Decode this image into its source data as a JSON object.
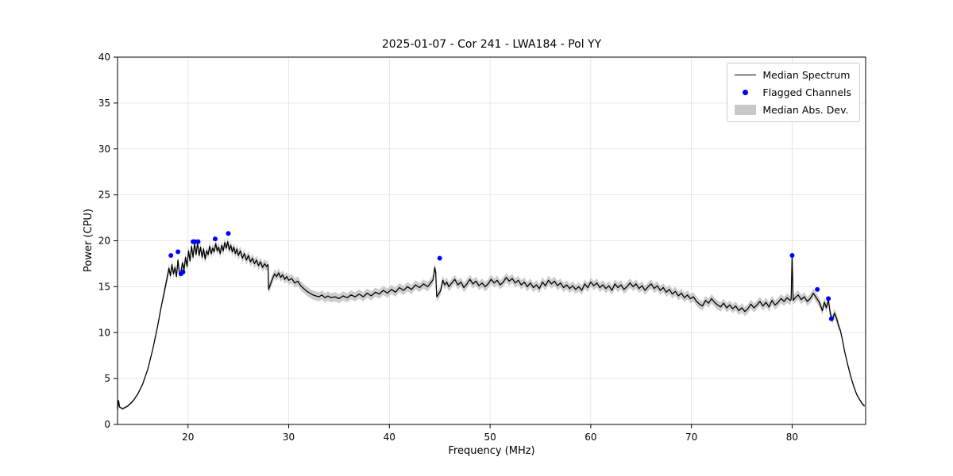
{
  "title": "2025-01-07 - Cor 241 - LWA184 - Pol YY",
  "legend": {
    "items": [
      {
        "label": "Median Spectrum"
      },
      {
        "label": "Flagged Channels"
      },
      {
        "label": "Median Abs. Dev."
      }
    ]
  },
  "chart_data": {
    "type": "line",
    "title": "2025-01-07 - Cor 241 - LWA184 - Pol YY",
    "xlabel": "Frequency (MHz)",
    "ylabel": "Power (CPU)",
    "axes": {
      "x_min": 13.0,
      "x_max": 87.3,
      "y_min": 0,
      "y_max": 40
    },
    "x_ticks": [
      20,
      30,
      40,
      50,
      60,
      70,
      80
    ],
    "y_ticks": [
      0,
      5,
      10,
      15,
      20,
      25,
      30,
      35,
      40
    ],
    "legend_position": "upper right",
    "grid": true,
    "colors": {
      "line": "#000000",
      "flagged": "#0000ff",
      "band": "#c8c8c8",
      "grid": "#e0e0e0"
    },
    "mad_band": {
      "regions": [
        {
          "x0": 13.0,
          "x1": 17.5,
          "hw": 0.12
        },
        {
          "x0": 17.5,
          "x1": 84.6,
          "hw": 0.5
        },
        {
          "x0": 84.6,
          "x1": 87.3,
          "hw": 0.15
        }
      ]
    },
    "spectrum": [
      [
        13.0,
        1.6
      ],
      [
        13.1,
        2.6
      ],
      [
        13.2,
        1.9
      ],
      [
        13.5,
        1.7
      ],
      [
        14.0,
        2.0
      ],
      [
        14.5,
        2.5
      ],
      [
        15.0,
        3.3
      ],
      [
        15.5,
        4.4
      ],
      [
        16.0,
        6.0
      ],
      [
        16.5,
        8.2
      ],
      [
        17.0,
        10.8
      ],
      [
        17.3,
        12.6
      ],
      [
        17.6,
        14.2
      ],
      [
        17.8,
        15.3
      ],
      [
        18.0,
        16.4
      ],
      [
        18.1,
        17.0
      ],
      [
        18.25,
        16.2
      ],
      [
        18.4,
        17.4
      ],
      [
        18.55,
        16.4
      ],
      [
        18.7,
        17.1
      ],
      [
        18.85,
        16.1
      ],
      [
        19.0,
        17.9
      ],
      [
        19.15,
        16.3
      ],
      [
        19.3,
        16.6
      ],
      [
        19.45,
        17.6
      ],
      [
        19.6,
        16.8
      ],
      [
        19.75,
        18.2
      ],
      [
        19.9,
        17.2
      ],
      [
        20.05,
        18.9
      ],
      [
        20.2,
        17.8
      ],
      [
        20.35,
        19.4
      ],
      [
        20.5,
        18.2
      ],
      [
        20.65,
        19.7
      ],
      [
        20.8,
        18.5
      ],
      [
        20.95,
        19.8
      ],
      [
        21.1,
        18.4
      ],
      [
        21.25,
        19.3
      ],
      [
        21.4,
        18.2
      ],
      [
        21.55,
        19.1
      ],
      [
        21.7,
        18.0
      ],
      [
        21.85,
        18.9
      ],
      [
        22.0,
        18.5
      ],
      [
        22.15,
        19.4
      ],
      [
        22.3,
        18.6
      ],
      [
        22.45,
        19.2
      ],
      [
        22.6,
        18.8
      ],
      [
        22.75,
        19.7
      ],
      [
        22.9,
        18.9
      ],
      [
        23.05,
        19.3
      ],
      [
        23.2,
        18.6
      ],
      [
        23.35,
        19.5
      ],
      [
        23.5,
        18.9
      ],
      [
        23.65,
        19.8
      ],
      [
        23.8,
        19.2
      ],
      [
        23.95,
        19.9
      ],
      [
        24.1,
        19.0
      ],
      [
        24.25,
        19.5
      ],
      [
        24.4,
        18.8
      ],
      [
        24.55,
        19.3
      ],
      [
        24.7,
        18.6
      ],
      [
        24.85,
        19.1
      ],
      [
        25.0,
        18.4
      ],
      [
        25.2,
        18.9
      ],
      [
        25.4,
        18.1
      ],
      [
        25.6,
        18.6
      ],
      [
        25.8,
        17.9
      ],
      [
        26.0,
        18.4
      ],
      [
        26.2,
        17.7
      ],
      [
        26.4,
        18.1
      ],
      [
        26.6,
        17.5
      ],
      [
        26.8,
        17.9
      ],
      [
        27.0,
        17.3
      ],
      [
        27.2,
        17.7
      ],
      [
        27.4,
        17.1
      ],
      [
        27.6,
        17.5
      ],
      [
        27.8,
        17.2
      ],
      [
        27.95,
        17.4
      ],
      [
        28.0,
        14.7
      ],
      [
        28.2,
        15.3
      ],
      [
        28.4,
        15.9
      ],
      [
        28.6,
        16.4
      ],
      [
        28.8,
        16.1
      ],
      [
        29.0,
        16.5
      ],
      [
        29.2,
        16.0
      ],
      [
        29.4,
        16.3
      ],
      [
        29.6,
        15.8
      ],
      [
        29.8,
        16.1
      ],
      [
        30.0,
        15.7
      ],
      [
        30.3,
        15.9
      ],
      [
        30.6,
        15.4
      ],
      [
        30.9,
        15.6
      ],
      [
        31.2,
        15.1
      ],
      [
        31.5,
        14.8
      ],
      [
        31.8,
        14.5
      ],
      [
        32.1,
        14.3
      ],
      [
        32.4,
        14.1
      ],
      [
        32.7,
        14.0
      ],
      [
        33.0,
        13.9
      ],
      [
        33.3,
        14.1
      ],
      [
        33.6,
        13.8
      ],
      [
        33.9,
        14.0
      ],
      [
        34.2,
        13.8
      ],
      [
        34.6,
        13.9
      ],
      [
        35.0,
        13.7
      ],
      [
        35.4,
        14.0
      ],
      [
        35.8,
        13.8
      ],
      [
        36.2,
        14.1
      ],
      [
        36.6,
        13.9
      ],
      [
        37.0,
        14.2
      ],
      [
        37.4,
        13.9
      ],
      [
        37.8,
        14.3
      ],
      [
        38.2,
        14.0
      ],
      [
        38.6,
        14.4
      ],
      [
        39.0,
        14.2
      ],
      [
        39.4,
        14.6
      ],
      [
        39.8,
        14.3
      ],
      [
        40.2,
        14.7
      ],
      [
        40.6,
        14.4
      ],
      [
        41.0,
        14.9
      ],
      [
        41.4,
        14.6
      ],
      [
        41.8,
        15.0
      ],
      [
        42.2,
        14.7
      ],
      [
        42.6,
        15.2
      ],
      [
        43.0,
        14.9
      ],
      [
        43.4,
        15.3
      ],
      [
        43.8,
        15.0
      ],
      [
        44.1,
        15.4
      ],
      [
        44.35,
        15.8
      ],
      [
        44.5,
        17.1
      ],
      [
        44.6,
        16.6
      ],
      [
        44.7,
        13.9
      ],
      [
        44.9,
        14.2
      ],
      [
        45.1,
        14.6
      ],
      [
        45.3,
        15.7
      ],
      [
        45.5,
        15.2
      ],
      [
        45.7,
        15.5
      ],
      [
        45.9,
        15.0
      ],
      [
        46.2,
        15.4
      ],
      [
        46.5,
        15.8
      ],
      [
        46.8,
        15.2
      ],
      [
        47.1,
        15.5
      ],
      [
        47.4,
        14.9
      ],
      [
        47.7,
        15.3
      ],
      [
        48.0,
        15.8
      ],
      [
        48.3,
        15.3
      ],
      [
        48.6,
        15.6
      ],
      [
        48.9,
        15.1
      ],
      [
        49.2,
        15.4
      ],
      [
        49.5,
        15.0
      ],
      [
        49.8,
        15.3
      ],
      [
        50.1,
        15.8
      ],
      [
        50.4,
        15.4
      ],
      [
        50.7,
        15.7
      ],
      [
        51.0,
        15.2
      ],
      [
        51.3,
        15.5
      ],
      [
        51.6,
        16.0
      ],
      [
        51.9,
        15.6
      ],
      [
        52.2,
        15.9
      ],
      [
        52.5,
        15.4
      ],
      [
        52.8,
        15.7
      ],
      [
        53.1,
        15.2
      ],
      [
        53.4,
        15.5
      ],
      [
        53.7,
        15.0
      ],
      [
        54.0,
        15.4
      ],
      [
        54.3,
        14.9
      ],
      [
        54.6,
        15.2
      ],
      [
        54.9,
        14.8
      ],
      [
        55.2,
        15.5
      ],
      [
        55.5,
        15.1
      ],
      [
        55.8,
        15.7
      ],
      [
        56.1,
        15.3
      ],
      [
        56.4,
        15.6
      ],
      [
        56.7,
        15.1
      ],
      [
        57.0,
        15.4
      ],
      [
        57.3,
        14.9
      ],
      [
        57.6,
        15.2
      ],
      [
        57.9,
        14.8
      ],
      [
        58.2,
        15.1
      ],
      [
        58.5,
        14.7
      ],
      [
        58.8,
        15.0
      ],
      [
        59.1,
        14.6
      ],
      [
        59.4,
        15.3
      ],
      [
        59.7,
        14.9
      ],
      [
        60.0,
        15.5
      ],
      [
        60.3,
        15.1
      ],
      [
        60.6,
        15.4
      ],
      [
        60.9,
        14.9
      ],
      [
        61.2,
        15.2
      ],
      [
        61.5,
        14.8
      ],
      [
        61.8,
        15.1
      ],
      [
        62.1,
        14.6
      ],
      [
        62.4,
        15.3
      ],
      [
        62.7,
        14.9
      ],
      [
        63.0,
        15.2
      ],
      [
        63.3,
        14.7
      ],
      [
        63.6,
        15.0
      ],
      [
        63.9,
        15.4
      ],
      [
        64.2,
        15.0
      ],
      [
        64.5,
        15.3
      ],
      [
        64.8,
        14.8
      ],
      [
        65.1,
        15.1
      ],
      [
        65.4,
        14.6
      ],
      [
        65.7,
        15.0
      ],
      [
        66.0,
        15.3
      ],
      [
        66.3,
        14.8
      ],
      [
        66.6,
        15.1
      ],
      [
        66.9,
        14.6
      ],
      [
        67.2,
        14.9
      ],
      [
        67.5,
        14.4
      ],
      [
        67.8,
        14.7
      ],
      [
        68.1,
        14.2
      ],
      [
        68.4,
        14.5
      ],
      [
        68.7,
        14.0
      ],
      [
        69.0,
        14.3
      ],
      [
        69.3,
        13.8
      ],
      [
        69.6,
        14.1
      ],
      [
        69.9,
        13.7
      ],
      [
        70.2,
        13.9
      ],
      [
        70.5,
        13.4
      ],
      [
        70.8,
        13.1
      ],
      [
        71.1,
        12.9
      ],
      [
        71.4,
        13.5
      ],
      [
        71.7,
        13.2
      ],
      [
        72.0,
        13.7
      ],
      [
        72.3,
        13.3
      ],
      [
        72.6,
        13.0
      ],
      [
        72.9,
        12.8
      ],
      [
        73.2,
        13.2
      ],
      [
        73.5,
        12.7
      ],
      [
        73.8,
        13.0
      ],
      [
        74.1,
        12.6
      ],
      [
        74.4,
        12.9
      ],
      [
        74.7,
        12.4
      ],
      [
        75.0,
        12.7
      ],
      [
        75.3,
        12.3
      ],
      [
        75.6,
        12.6
      ],
      [
        75.9,
        13.1
      ],
      [
        76.2,
        12.7
      ],
      [
        76.5,
        13.0
      ],
      [
        76.8,
        13.4
      ],
      [
        77.1,
        12.9
      ],
      [
        77.4,
        13.3
      ],
      [
        77.7,
        12.8
      ],
      [
        78.0,
        13.5
      ],
      [
        78.3,
        13.0
      ],
      [
        78.6,
        13.3
      ],
      [
        78.9,
        13.7
      ],
      [
        79.2,
        13.4
      ],
      [
        79.5,
        13.8
      ],
      [
        79.8,
        13.5
      ],
      [
        79.9,
        13.6
      ],
      [
        80.0,
        18.4
      ],
      [
        80.1,
        13.5
      ],
      [
        80.3,
        13.8
      ],
      [
        80.6,
        14.1
      ],
      [
        80.9,
        13.6
      ],
      [
        81.2,
        13.9
      ],
      [
        81.5,
        13.4
      ],
      [
        81.8,
        13.7
      ],
      [
        82.1,
        14.3
      ],
      [
        82.4,
        13.8
      ],
      [
        82.7,
        13.3
      ],
      [
        83.0,
        12.4
      ],
      [
        83.2,
        13.3
      ],
      [
        83.4,
        12.7
      ],
      [
        83.6,
        13.6
      ],
      [
        83.8,
        12.0
      ],
      [
        84.0,
        11.4
      ],
      [
        84.2,
        12.1
      ],
      [
        84.4,
        11.6
      ],
      [
        84.6,
        10.8
      ],
      [
        84.8,
        10.2
      ],
      [
        85.0,
        9.2
      ],
      [
        85.2,
        8.0
      ],
      [
        85.5,
        6.6
      ],
      [
        85.8,
        5.3
      ],
      [
        86.1,
        4.2
      ],
      [
        86.4,
        3.3
      ],
      [
        86.7,
        2.7
      ],
      [
        87.0,
        2.2
      ],
      [
        87.2,
        2.0
      ]
    ],
    "flagged": [
      [
        18.3,
        18.4
      ],
      [
        19.0,
        18.8
      ],
      [
        19.3,
        16.4
      ],
      [
        19.5,
        16.6
      ],
      [
        20.5,
        19.9
      ],
      [
        20.7,
        19.9
      ],
      [
        21.0,
        19.9
      ],
      [
        22.7,
        20.2
      ],
      [
        24.0,
        20.8
      ],
      [
        45.0,
        18.1
      ],
      [
        80.0,
        18.4
      ],
      [
        82.5,
        14.7
      ],
      [
        83.6,
        13.7
      ],
      [
        83.9,
        11.5
      ]
    ]
  }
}
